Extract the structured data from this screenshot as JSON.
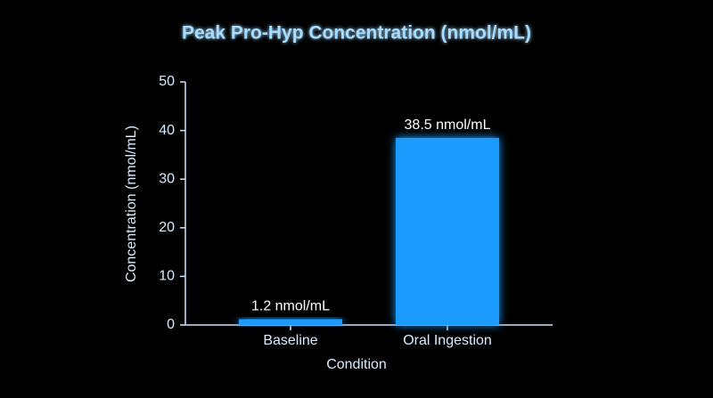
{
  "chart_data": {
    "type": "bar",
    "title": "Peak Pro-Hyp Concentration (nmol/mL)",
    "x_label": "Condition",
    "y_label": "Concentration (nmol/mL)",
    "categories": [
      "Baseline",
      "Oral Ingestion"
    ],
    "values": [
      1.2,
      38.5
    ],
    "value_labels": [
      "1.2 nmol/mL",
      "38.5 nmol/mL"
    ],
    "color": "#1e9bff",
    "ylim": [
      0,
      50
    ],
    "yticks": [
      0,
      10,
      20,
      30,
      40,
      50
    ],
    "grid": false
  }
}
